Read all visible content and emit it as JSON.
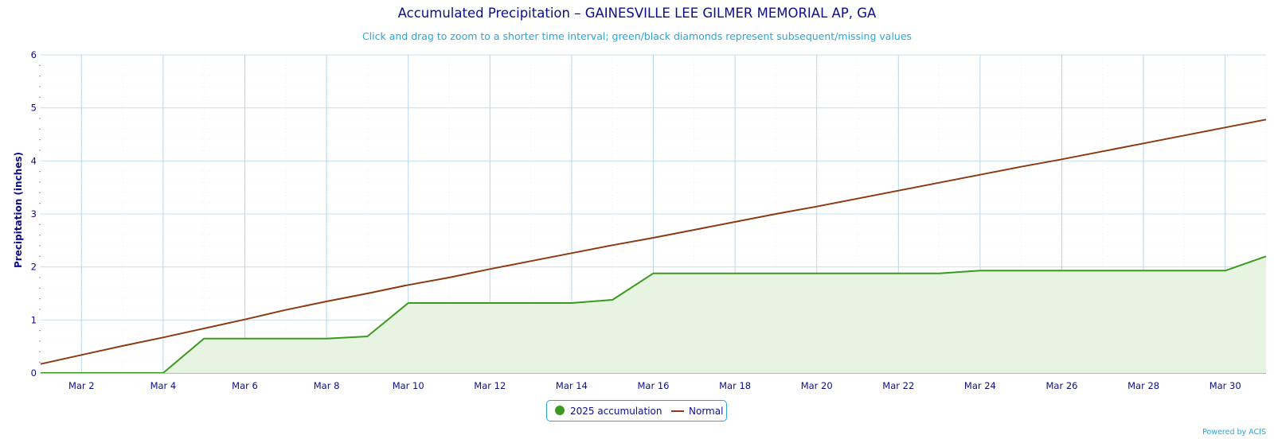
{
  "chart_data": {
    "type": "line",
    "title": "Accumulated Precipitation – GAINESVILLE LEE GILMER MEMORIAL AP, GA",
    "subtitle": "Click and drag to zoom to a shorter time interval; green/black diamonds represent subsequent/missing values",
    "xlabel": "",
    "ylabel": "Precipitation (inches)",
    "ylim": [
      0,
      6
    ],
    "yticks": [
      0,
      1,
      2,
      3,
      4,
      5,
      6
    ],
    "xlim": [
      1,
      31
    ],
    "xticks": [
      2,
      4,
      6,
      8,
      10,
      12,
      14,
      16,
      18,
      20,
      22,
      24,
      26,
      28,
      30
    ],
    "xtick_labels": [
      "Mar 2",
      "Mar 4",
      "Mar 6",
      "Mar 8",
      "Mar 10",
      "Mar 12",
      "Mar 14",
      "Mar 16",
      "Mar 18",
      "Mar 20",
      "Mar 22",
      "Mar 24",
      "Mar 26",
      "Mar 28",
      "Mar 30"
    ],
    "grid": true,
    "legend_position": "bottom-center",
    "series": [
      {
        "name": "2025 accumulation",
        "kind": "area",
        "color": "#3a9a1e",
        "fill": "#e8f4e2",
        "x": [
          1,
          2,
          3,
          4,
          5,
          6,
          7,
          8,
          9,
          10,
          11,
          12,
          13,
          14,
          15,
          16,
          17,
          18,
          19,
          20,
          21,
          22,
          23,
          24,
          25,
          26,
          27,
          28,
          29,
          30,
          31
        ],
        "values": [
          0,
          0,
          0,
          0,
          0.65,
          0.65,
          0.65,
          0.65,
          0.69,
          1.32,
          1.32,
          1.32,
          1.32,
          1.32,
          1.38,
          1.88,
          1.88,
          1.88,
          1.88,
          1.88,
          1.88,
          1.88,
          1.88,
          1.93,
          1.93,
          1.93,
          1.93,
          1.93,
          1.93,
          1.93,
          2.2
        ]
      },
      {
        "name": "Normal",
        "kind": "line",
        "color": "#8b3a12",
        "x": [
          1,
          2,
          3,
          4,
          5,
          6,
          7,
          8,
          9,
          10,
          11,
          12,
          13,
          14,
          15,
          16,
          17,
          18,
          19,
          20,
          21,
          22,
          23,
          24,
          25,
          26,
          27,
          28,
          29,
          30,
          31
        ],
        "values": [
          0.17,
          0.34,
          0.51,
          0.67,
          0.84,
          1.01,
          1.19,
          1.35,
          1.5,
          1.66,
          1.8,
          1.96,
          2.11,
          2.26,
          2.41,
          2.55,
          2.7,
          2.85,
          3.0,
          3.14,
          3.29,
          3.44,
          3.59,
          3.74,
          3.89,
          4.03,
          4.18,
          4.33,
          4.48,
          4.63,
          4.78
        ]
      }
    ]
  },
  "legend": {
    "items": [
      "2025 accumulation",
      "Normal"
    ]
  },
  "credits": "Powered by ACIS"
}
